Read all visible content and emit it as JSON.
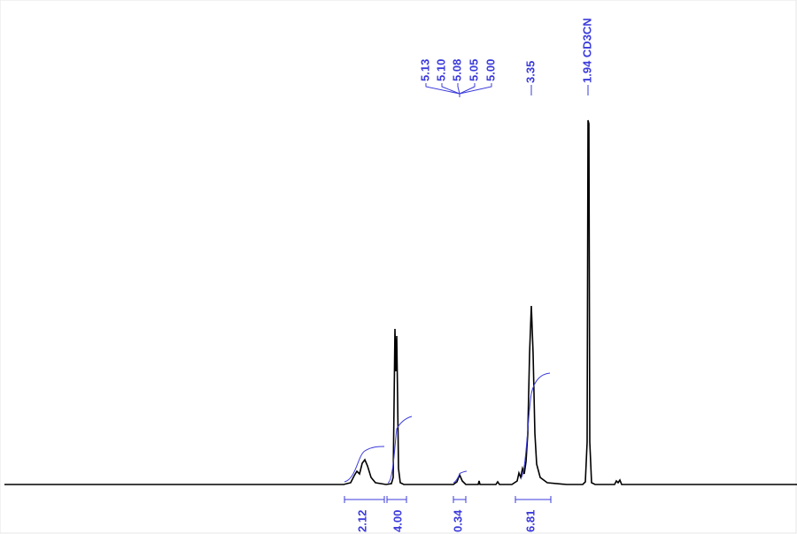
{
  "peaks": [
    {
      "label": "5.13"
    },
    {
      "label": "5.10"
    },
    {
      "label": "5.08"
    },
    {
      "label": "5.05"
    },
    {
      "label": "5.00"
    },
    {
      "label": "3.35"
    },
    {
      "label": "1.94 CD3CN"
    }
  ],
  "integrals": [
    {
      "label": "2.12"
    },
    {
      "label": "4.00"
    },
    {
      "label": "0.34"
    },
    {
      "label": "6.81"
    }
  ]
}
